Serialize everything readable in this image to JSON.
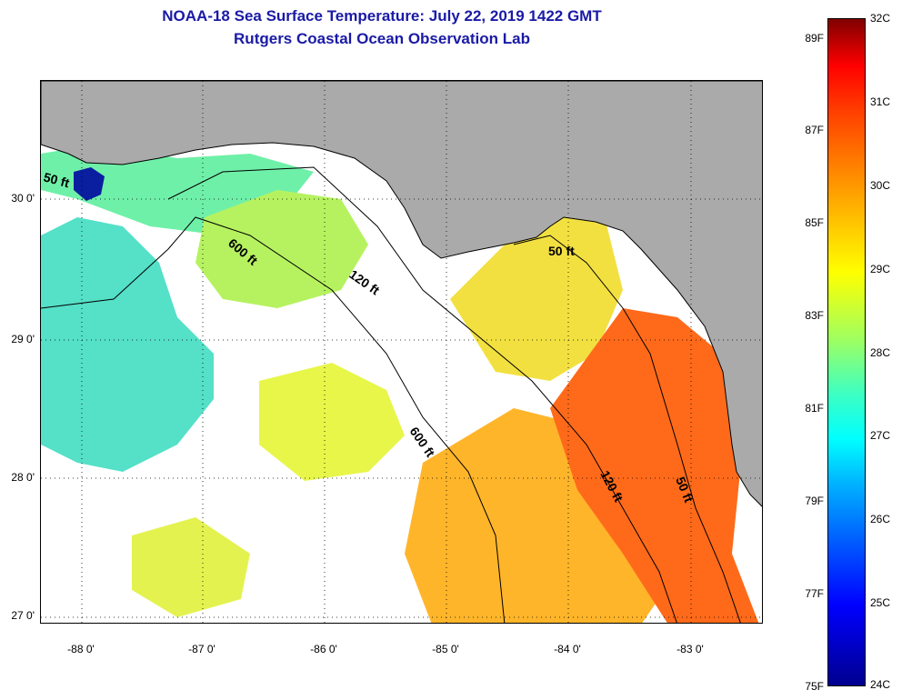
{
  "title": {
    "line1": "NOAA-18 Sea Surface Temperature:  July 22, 2019 1422 GMT",
    "line2": "Rutgers Coastal Ocean Observation Lab"
  },
  "map": {
    "lat_labels": [
      "30 0'",
      "29 0'",
      "28 0'",
      "27 0'"
    ],
    "lon_labels": [
      "-88 0'",
      "-87 0'",
      "-86 0'",
      "-85 0'",
      "-84 0'",
      "-83 0'"
    ],
    "lat_range": [
      26.97,
      30.85
    ],
    "lon_range": [
      -88.35,
      -82.4
    ],
    "contour_labels": [
      "50 ft",
      "600 ft",
      "120 ft",
      "600 ft",
      "50 ft",
      "120 ft",
      "50 ft"
    ],
    "colors": {
      "land": "#aaaaaa",
      "cloud": "#ffffff",
      "grid": "#000000"
    }
  },
  "colorbar": {
    "fahrenheit_labels": [
      "89F",
      "87F",
      "85F",
      "83F",
      "81F",
      "79F",
      "77F",
      "75F"
    ],
    "celsius_labels": [
      "32C",
      "31C",
      "30C",
      "29C",
      "28C",
      "27C",
      "26C",
      "25C",
      "24C"
    ],
    "range_c": [
      24,
      32
    ],
    "range_f": [
      75,
      89.6
    ]
  }
}
